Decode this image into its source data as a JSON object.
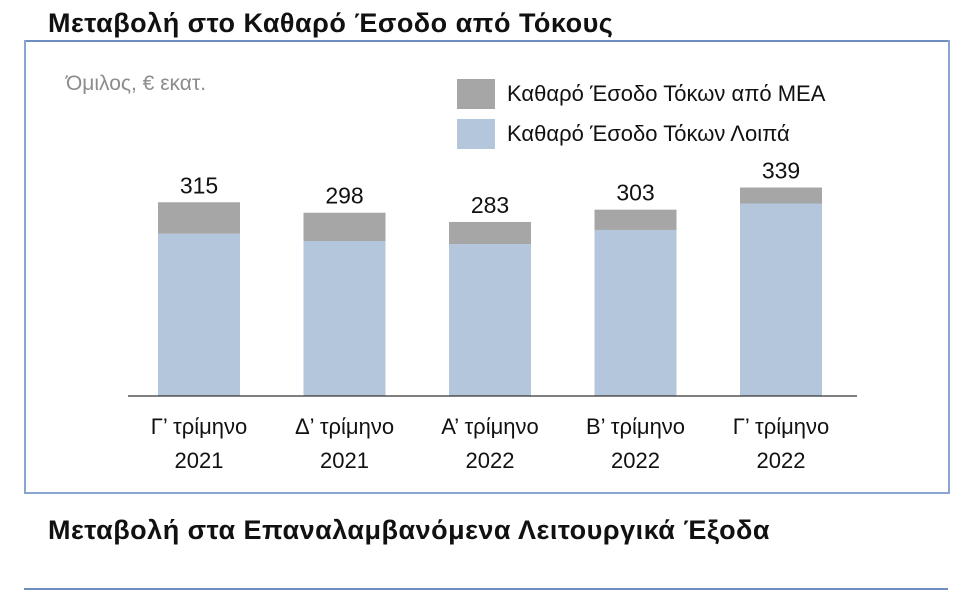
{
  "titles": {
    "main": "Μεταβολή στο Καθαρό Έσοδο από Τόκους",
    "next": "Μεταβολή στα Επαναλαμβανόμενα Λειτουργικά Έξοδα"
  },
  "chart_data": {
    "type": "bar",
    "stacked": true,
    "unit_label": "Όμιλος, € εκατ.",
    "categories": [
      [
        "Γ’ τρίμηνο",
        "2021"
      ],
      [
        "Δ’ τρίμηνο",
        "2021"
      ],
      [
        "Α’ τρίμηνο",
        "2022"
      ],
      [
        "Β’ τρίμηνο",
        "2022"
      ],
      [
        "Γ’ τρίμηνο",
        "2022"
      ]
    ],
    "series": [
      {
        "name": "Καθαρό Έσοδο Τόκων Λοιπά",
        "color": "#b4c6dc",
        "values": [
          264,
          252,
          247,
          270,
          313
        ]
      },
      {
        "name": "Καθαρό Έσοδο Τόκων από ΜΕΑ",
        "color": "#a6a6a6",
        "values": [
          51,
          46,
          36,
          33,
          26
        ]
      }
    ],
    "totals": [
      315,
      298,
      283,
      303,
      339
    ],
    "legend_order": [
      1,
      0
    ],
    "legend_position": "top-right",
    "ylim": [
      0,
      360
    ],
    "grid": false,
    "y_axis_visible": false
  }
}
